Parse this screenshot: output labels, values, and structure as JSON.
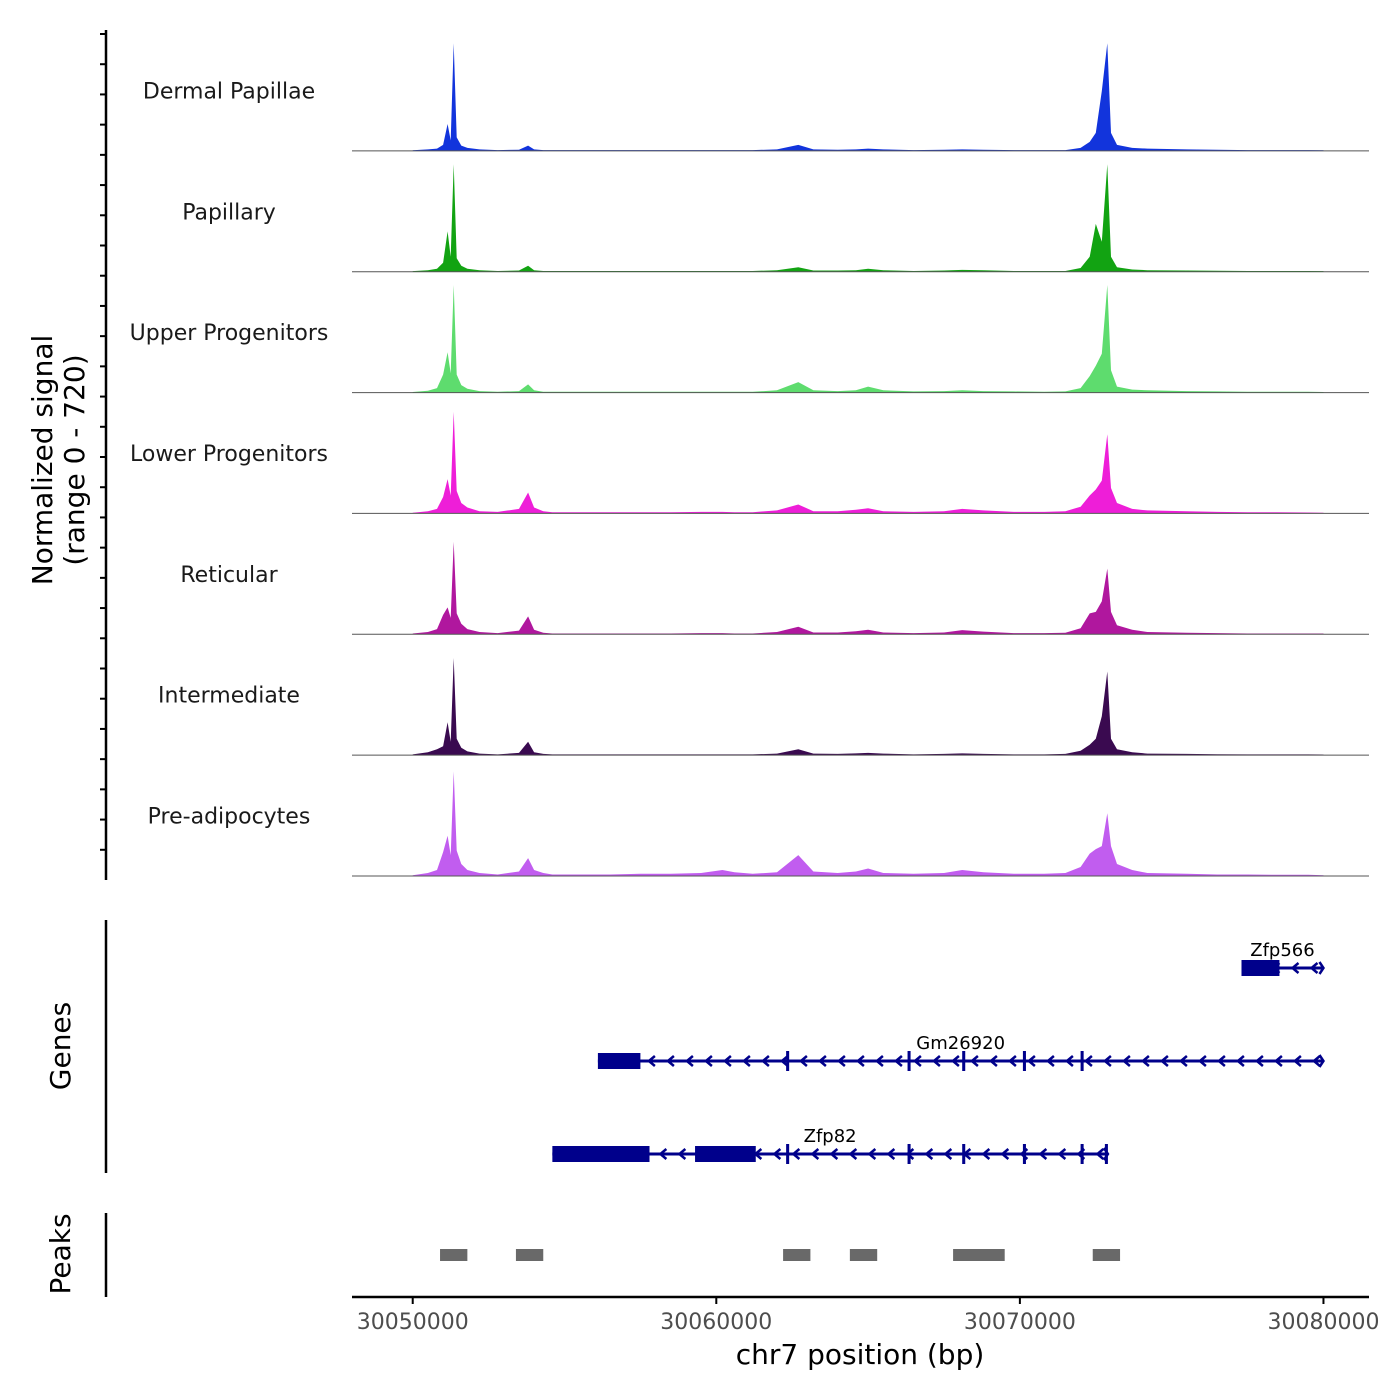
{
  "chart_data": {
    "type": "area",
    "chromosome": "chr7",
    "xlabel": "chr7 position (bp)",
    "xlim": [
      30048000,
      30081500
    ],
    "xticks": [
      30050000,
      30060000,
      30070000,
      30080000
    ],
    "xtick_labels": [
      "30050000",
      "30060000",
      "30070000",
      "30080000"
    ],
    "coverage": {
      "ylabel_line1": "Normalized signal",
      "ylabel_line2": "(range 0 - 720)",
      "ylim": [
        0,
        720
      ],
      "x": [
        30050000,
        30050500,
        30050800,
        30051000,
        30051150,
        30051250,
        30051350,
        30051450,
        30051600,
        30051800,
        30052200,
        30052800,
        30053500,
        30053800,
        30054000,
        30054300,
        30054600,
        30055500,
        30056500,
        30057500,
        30058500,
        30059500,
        30060200,
        30060600,
        30061200,
        30062000,
        30062700,
        30063200,
        30064000,
        30064600,
        30065000,
        30065500,
        30066500,
        30067500,
        30068100,
        30068800,
        30069800,
        30070800,
        30071500,
        30072000,
        30072300,
        30072500,
        30072700,
        30072880,
        30073000,
        30073200,
        30073700,
        30074200,
        30075500,
        30076500,
        30077500,
        30078500,
        30079500,
        30080000
      ],
      "series": [
        {
          "name": "Dermal Papillae",
          "color": "#1234DC",
          "values": [
            4,
            10,
            15,
            40,
            180,
            70,
            720,
            90,
            35,
            20,
            10,
            5,
            8,
            35,
            10,
            5,
            5,
            5,
            5,
            5,
            5,
            5,
            5,
            5,
            5,
            10,
            40,
            10,
            8,
            10,
            15,
            10,
            5,
            8,
            10,
            8,
            5,
            5,
            5,
            20,
            60,
            120,
            400,
            740,
            120,
            40,
            20,
            15,
            10,
            8,
            5,
            5,
            5,
            4
          ]
        },
        {
          "name": "Papillary",
          "color": "#12A312",
          "values": [
            4,
            10,
            20,
            60,
            270,
            100,
            720,
            90,
            40,
            20,
            10,
            5,
            8,
            40,
            10,
            5,
            5,
            5,
            5,
            5,
            5,
            5,
            5,
            5,
            5,
            10,
            30,
            8,
            8,
            10,
            20,
            10,
            5,
            8,
            12,
            10,
            5,
            5,
            5,
            25,
            100,
            320,
            200,
            720,
            100,
            30,
            15,
            10,
            8,
            6,
            5,
            5,
            5,
            4
          ]
        },
        {
          "name": "Upper Progenitors",
          "color": "#5EDC6E",
          "values": [
            4,
            12,
            30,
            120,
            270,
            130,
            720,
            120,
            50,
            25,
            10,
            5,
            10,
            55,
            15,
            6,
            5,
            5,
            5,
            5,
            5,
            5,
            5,
            5,
            5,
            15,
            70,
            15,
            10,
            15,
            40,
            15,
            8,
            10,
            15,
            10,
            8,
            5,
            8,
            30,
            110,
            180,
            260,
            720,
            150,
            40,
            20,
            15,
            10,
            8,
            5,
            5,
            5,
            4
          ]
        },
        {
          "name": "Lower Progenitors",
          "color": "#EE1ED8",
          "values": [
            5,
            15,
            30,
            110,
            230,
            120,
            680,
            150,
            70,
            40,
            15,
            10,
            30,
            140,
            40,
            15,
            8,
            8,
            8,
            8,
            8,
            10,
            10,
            8,
            8,
            20,
            60,
            15,
            15,
            25,
            35,
            15,
            10,
            15,
            30,
            20,
            10,
            10,
            15,
            45,
            120,
            160,
            220,
            530,
            170,
            70,
            30,
            20,
            15,
            10,
            8,
            8,
            6,
            5
          ]
        },
        {
          "name": "Reticular",
          "color": "#B0179E",
          "values": [
            5,
            15,
            35,
            130,
            180,
            110,
            620,
            140,
            70,
            35,
            15,
            8,
            25,
            120,
            30,
            10,
            5,
            5,
            5,
            5,
            5,
            8,
            8,
            5,
            5,
            15,
            50,
            12,
            12,
            20,
            30,
            12,
            8,
            12,
            28,
            18,
            8,
            8,
            10,
            40,
            140,
            150,
            220,
            440,
            150,
            60,
            30,
            15,
            10,
            8,
            5,
            5,
            5,
            5
          ]
        },
        {
          "name": "Intermediate",
          "color": "#3A0A50",
          "values": [
            5,
            20,
            40,
            60,
            220,
            90,
            650,
            110,
            50,
            25,
            10,
            5,
            15,
            90,
            20,
            8,
            5,
            5,
            5,
            5,
            5,
            5,
            5,
            5,
            5,
            10,
            40,
            10,
            8,
            12,
            15,
            10,
            5,
            8,
            12,
            8,
            5,
            5,
            8,
            30,
            70,
            110,
            260,
            560,
            110,
            40,
            20,
            10,
            8,
            6,
            5,
            5,
            5,
            4
          ]
        },
        {
          "name": "Pre-adipocytes",
          "color": "#C15DEF",
          "values": [
            5,
            20,
            40,
            160,
            270,
            140,
            700,
            170,
            80,
            40,
            20,
            10,
            30,
            120,
            40,
            20,
            10,
            10,
            10,
            15,
            15,
            20,
            40,
            25,
            15,
            25,
            140,
            30,
            20,
            30,
            50,
            20,
            15,
            20,
            40,
            25,
            15,
            15,
            20,
            60,
            150,
            180,
            200,
            420,
            200,
            80,
            40,
            20,
            15,
            10,
            10,
            8,
            8,
            5
          ]
        }
      ]
    },
    "genes": {
      "ylabel": "Genes",
      "color": "#00008B",
      "items": [
        {
          "name": "Zfp566",
          "start": 30077300,
          "end": 30080000,
          "strand": "-",
          "exons": [
            [
              30077300,
              30078550
            ]
          ],
          "row": 1
        },
        {
          "name": "Gm26920",
          "start": 30056100,
          "end": 30080000,
          "strand": "-",
          "exons": [
            [
              30056100,
              30057500
            ],
            [
              30062300,
              30062400
            ],
            [
              30066300,
              30066400
            ],
            [
              30068100,
              30068200
            ],
            [
              30070100,
              30070200
            ],
            [
              30072000,
              30072100
            ]
          ],
          "row": 2
        },
        {
          "name": "Zfp82",
          "start": 30054600,
          "end": 30072900,
          "strand": "-",
          "exons": [
            [
              30054600,
              30057800
            ],
            [
              30059300,
              30061300
            ],
            [
              30062300,
              30062400
            ],
            [
              30066300,
              30066400
            ],
            [
              30068100,
              30068200
            ],
            [
              30070100,
              30070200
            ],
            [
              30072000,
              30072100
            ],
            [
              30072800,
              30072900
            ]
          ],
          "row": 3
        }
      ]
    },
    "peaks": {
      "ylabel": "Peaks",
      "color": "#696969",
      "regions": [
        [
          30050900,
          30051800
        ],
        [
          30053400,
          30054300
        ],
        [
          30062200,
          30063100
        ],
        [
          30064400,
          30065300
        ],
        [
          30067800,
          30069500
        ],
        [
          30072400,
          30073300
        ]
      ]
    }
  }
}
